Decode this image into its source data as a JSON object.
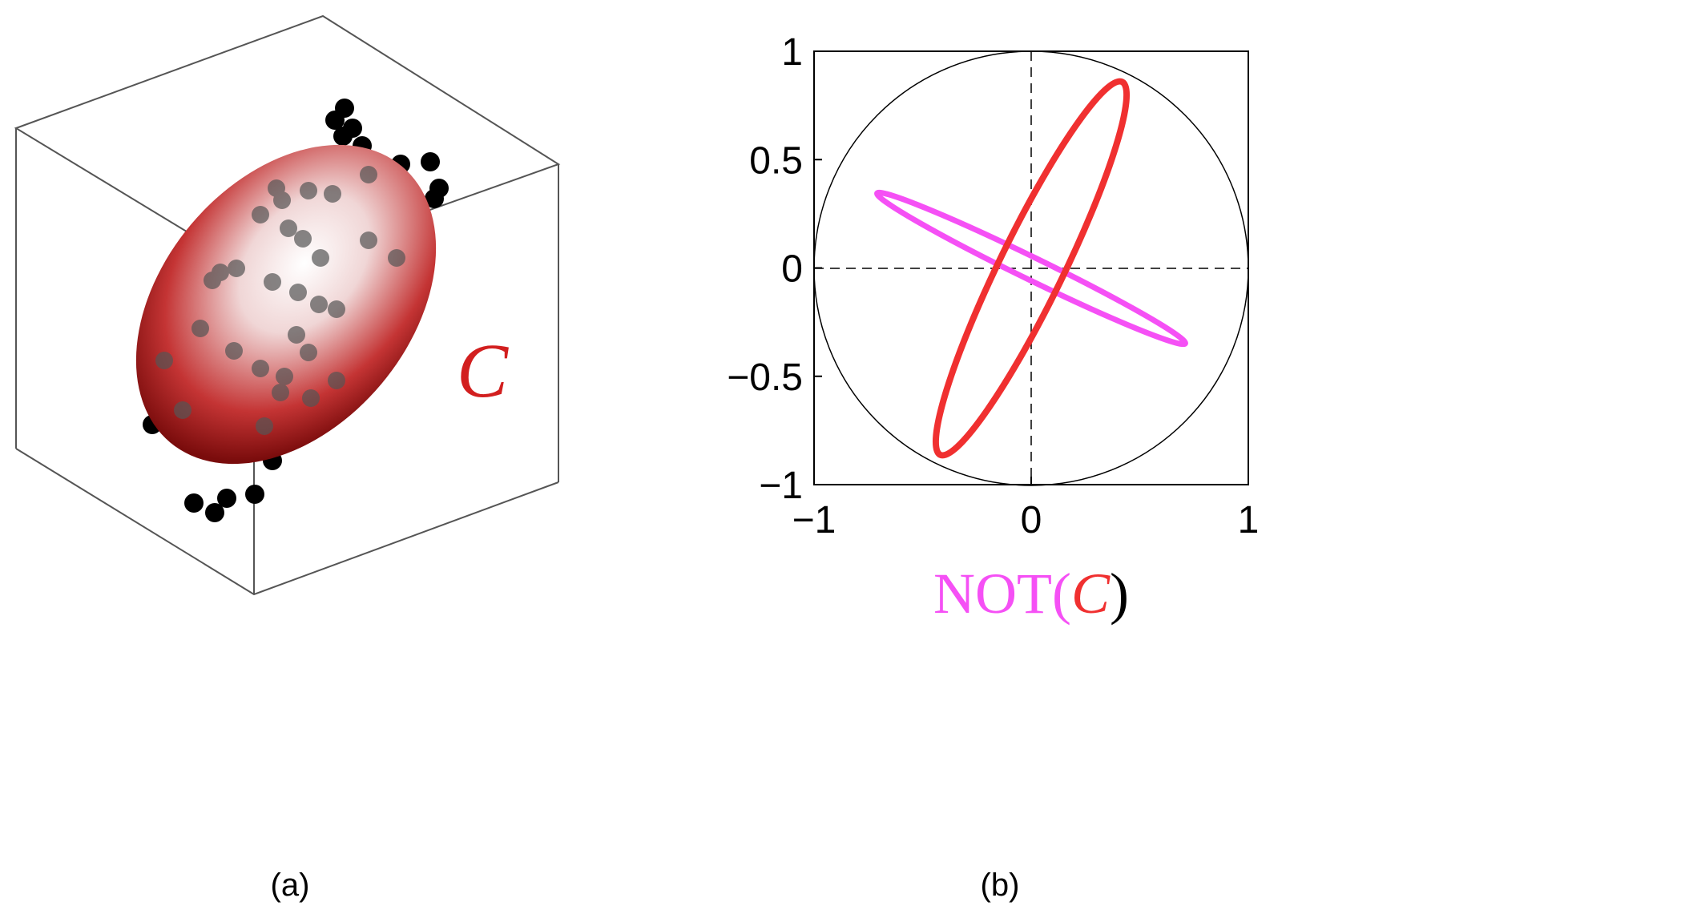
{
  "figure": {
    "panel_a": {
      "label": "(a)",
      "annotation": "C"
    },
    "panel_b": {
      "label": "(b)",
      "xlim": [
        -1,
        1
      ],
      "ylim": [
        -1,
        1
      ],
      "xticks": [
        {
          "value": -1,
          "label": "−1"
        },
        0,
        1
      ],
      "yticks": [
        {
          "value": -1,
          "label": "−1"
        },
        {
          "value": -0.5,
          "label": "−0.5"
        },
        0,
        0.5,
        1
      ],
      "caption": {
        "prefix": "NOT(",
        "symbol": "C",
        "suffix": ")"
      }
    }
  }
}
